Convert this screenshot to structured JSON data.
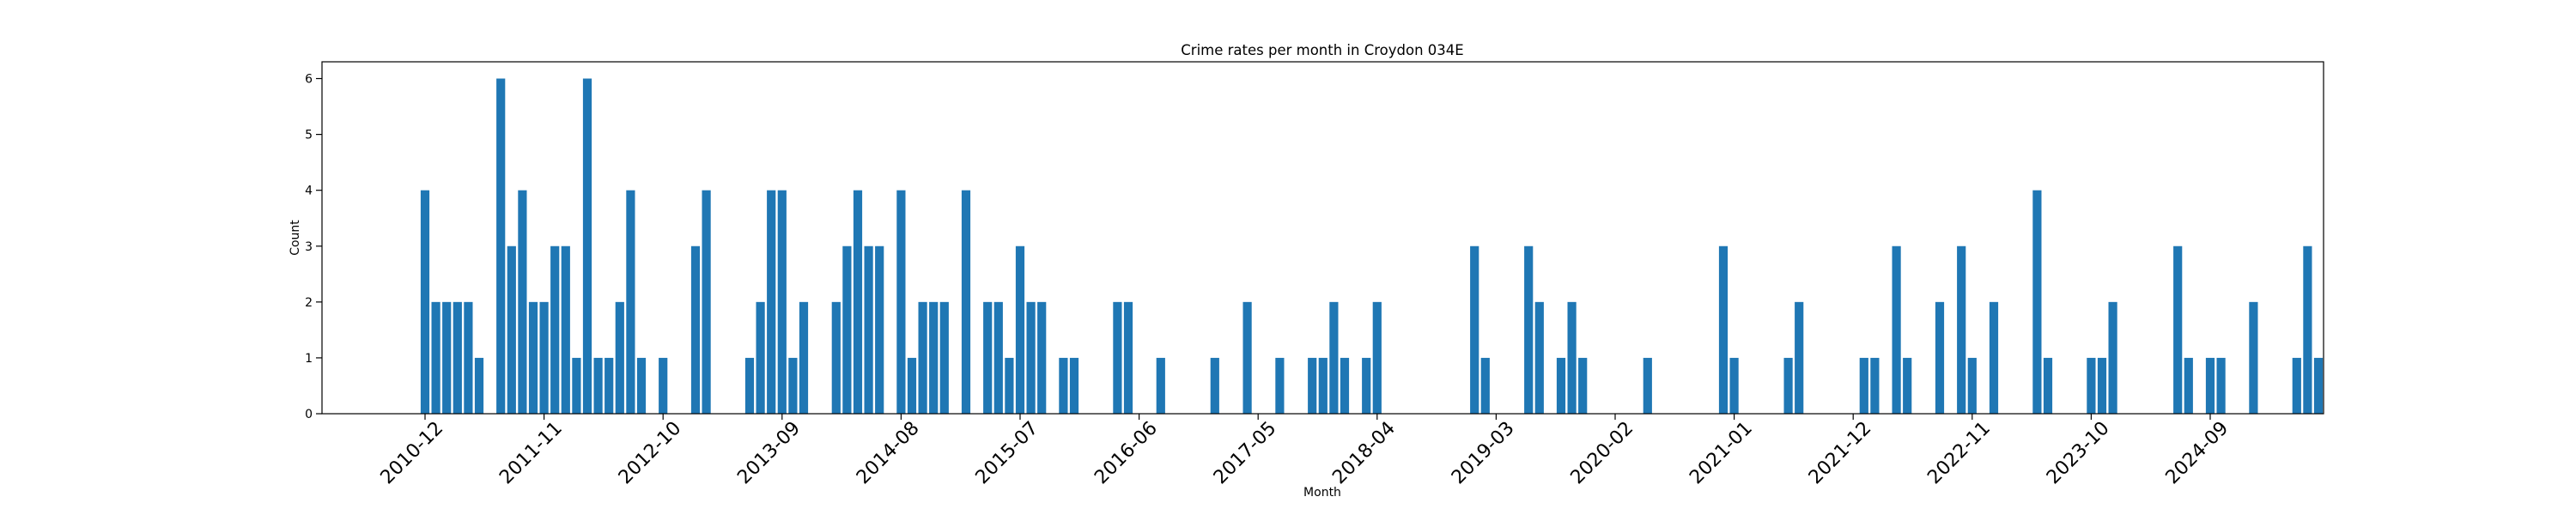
{
  "chart_data": {
    "type": "bar",
    "title": "Crime rates per month in Croydon 034E",
    "xlabel": "Month",
    "ylabel": "Count",
    "ylim": [
      0,
      6.3
    ],
    "yticks": [
      0,
      1,
      2,
      3,
      4,
      5,
      6
    ],
    "x_ticks": [
      "2010-12",
      "2011-11",
      "2012-10",
      "2013-09",
      "2014-08",
      "2015-07",
      "2016-06",
      "2017-05",
      "2018-04",
      "2019-03",
      "2020-02",
      "2021-01",
      "2021-12",
      "2022-11",
      "2023-10",
      "2024-09"
    ],
    "color": "#1f77b4",
    "grid": false,
    "points": [
      [
        "2010-12",
        4
      ],
      [
        "2011-01",
        2
      ],
      [
        "2011-02",
        2
      ],
      [
        "2011-03",
        2
      ],
      [
        "2011-04",
        2
      ],
      [
        "2011-05",
        1
      ],
      [
        "2011-07",
        6
      ],
      [
        "2011-08",
        3
      ],
      [
        "2011-09",
        4
      ],
      [
        "2011-10",
        2
      ],
      [
        "2011-11",
        2
      ],
      [
        "2011-12",
        3
      ],
      [
        "2012-01",
        3
      ],
      [
        "2012-02",
        1
      ],
      [
        "2012-03",
        6
      ],
      [
        "2012-04",
        1
      ],
      [
        "2012-05",
        1
      ],
      [
        "2012-06",
        2
      ],
      [
        "2012-07",
        4
      ],
      [
        "2012-08",
        1
      ],
      [
        "2012-10",
        1
      ],
      [
        "2013-01",
        3
      ],
      [
        "2013-02",
        4
      ],
      [
        "2013-06",
        1
      ],
      [
        "2013-07",
        2
      ],
      [
        "2013-08",
        4
      ],
      [
        "2013-09",
        4
      ],
      [
        "2013-10",
        1
      ],
      [
        "2013-11",
        2
      ],
      [
        "2014-02",
        2
      ],
      [
        "2014-03",
        3
      ],
      [
        "2014-04",
        4
      ],
      [
        "2014-05",
        3
      ],
      [
        "2014-06",
        3
      ],
      [
        "2014-08",
        4
      ],
      [
        "2014-09",
        1
      ],
      [
        "2014-10",
        2
      ],
      [
        "2014-11",
        2
      ],
      [
        "2014-12",
        2
      ],
      [
        "2015-02",
        4
      ],
      [
        "2015-04",
        2
      ],
      [
        "2015-05",
        2
      ],
      [
        "2015-06",
        1
      ],
      [
        "2015-07",
        3
      ],
      [
        "2015-08",
        2
      ],
      [
        "2015-09",
        2
      ],
      [
        "2015-11",
        1
      ],
      [
        "2015-12",
        1
      ],
      [
        "2016-04",
        2
      ],
      [
        "2016-05",
        2
      ],
      [
        "2016-08",
        1
      ],
      [
        "2017-01",
        1
      ],
      [
        "2017-04",
        2
      ],
      [
        "2017-07",
        1
      ],
      [
        "2017-10",
        1
      ],
      [
        "2017-11",
        1
      ],
      [
        "2017-12",
        2
      ],
      [
        "2018-01",
        1
      ],
      [
        "2018-03",
        1
      ],
      [
        "2018-04",
        2
      ],
      [
        "2019-01",
        3
      ],
      [
        "2019-02",
        1
      ],
      [
        "2019-06",
        3
      ],
      [
        "2019-07",
        2
      ],
      [
        "2019-09",
        1
      ],
      [
        "2019-10",
        2
      ],
      [
        "2019-11",
        1
      ],
      [
        "2020-05",
        1
      ],
      [
        "2020-12",
        3
      ],
      [
        "2021-01",
        1
      ],
      [
        "2021-06",
        1
      ],
      [
        "2021-07",
        2
      ],
      [
        "2022-01",
        1
      ],
      [
        "2022-02",
        1
      ],
      [
        "2022-04",
        3
      ],
      [
        "2022-05",
        1
      ],
      [
        "2022-08",
        2
      ],
      [
        "2022-10",
        3
      ],
      [
        "2022-11",
        1
      ],
      [
        "2023-01",
        2
      ],
      [
        "2023-05",
        4
      ],
      [
        "2023-06",
        1
      ],
      [
        "2023-10",
        1
      ],
      [
        "2023-11",
        1
      ],
      [
        "2023-12",
        2
      ],
      [
        "2024-06",
        3
      ],
      [
        "2024-07",
        1
      ],
      [
        "2024-09",
        1
      ],
      [
        "2024-10",
        1
      ],
      [
        "2025-01",
        2
      ],
      [
        "2025-05",
        1
      ],
      [
        "2025-06",
        3
      ],
      [
        "2025-07",
        1
      ]
    ]
  }
}
